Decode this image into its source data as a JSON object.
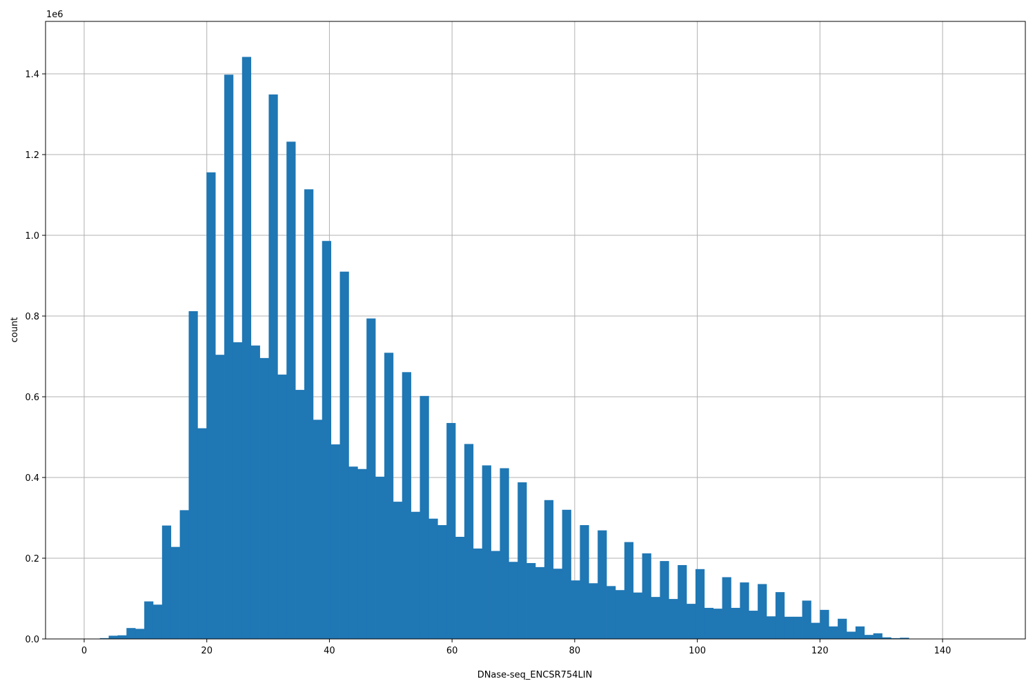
{
  "chart_data": {
    "type": "bar",
    "title": "",
    "xlabel": "DNase-seq_ENCSR754LIN",
    "ylabel": "count",
    "y_offset_label": "1e6",
    "bar_color": "#1f77b4",
    "grid": true,
    "xlim": [
      -6.3,
      153.5
    ],
    "ylim": [
      0,
      1.53
    ],
    "x_ticks": [
      0,
      20,
      40,
      60,
      80,
      100,
      120,
      140
    ],
    "x_tick_labels": [
      "0",
      "20",
      "40",
      "60",
      "80",
      "100",
      "120",
      "140"
    ],
    "y_ticks": [
      0.0,
      0.2,
      0.4,
      0.6,
      0.8,
      1.0,
      1.2,
      1.4
    ],
    "y_tick_labels": [
      "0.0",
      "0.2",
      "0.4",
      "0.6",
      "0.8",
      "1.0",
      "1.2",
      "1.4"
    ],
    "bin_width": 1.455,
    "bin_starts": [
      2.55,
      4.0,
      5.45,
      6.9,
      8.35,
      9.8,
      11.25,
      12.7,
      14.15,
      15.6,
      17.05,
      18.5,
      19.95,
      21.4,
      22.85,
      24.3,
      25.75,
      27.2,
      28.65,
      30.1,
      31.55,
      33.0,
      34.45,
      35.9,
      37.35,
      38.8,
      40.25,
      41.7,
      43.15,
      44.6,
      46.05,
      47.5,
      48.95,
      50.4,
      51.85,
      53.3,
      54.75,
      56.2,
      57.65,
      59.1,
      60.55,
      62.0,
      63.45,
      64.9,
      66.35,
      67.8,
      69.25,
      70.7,
      72.15,
      73.6,
      75.05,
      76.5,
      77.95,
      79.4,
      80.85,
      82.3,
      83.75,
      85.2,
      86.65,
      88.1,
      89.55,
      91.0,
      92.45,
      93.9,
      95.35,
      96.8,
      98.25,
      99.7,
      101.15,
      102.6,
      104.05,
      105.5,
      106.95,
      108.4,
      109.85,
      111.3,
      112.75,
      114.2,
      115.65,
      117.1,
      118.55,
      120.0,
      121.45,
      122.9,
      124.35,
      125.8,
      127.25,
      128.7,
      130.15,
      131.6,
      133.05
    ],
    "values": [
      0.002,
      0.008,
      0.009,
      0.027,
      0.025,
      0.093,
      0.085,
      0.281,
      0.228,
      0.319,
      0.812,
      0.522,
      1.156,
      0.704,
      1.398,
      0.735,
      1.442,
      0.727,
      0.696,
      1.349,
      0.655,
      1.232,
      0.617,
      1.114,
      0.543,
      0.986,
      0.482,
      0.91,
      0.427,
      0.421,
      0.794,
      0.402,
      0.709,
      0.34,
      0.661,
      0.315,
      0.602,
      0.298,
      0.282,
      0.535,
      0.253,
      0.483,
      0.224,
      0.43,
      0.218,
      0.423,
      0.191,
      0.388,
      0.188,
      0.178,
      0.344,
      0.174,
      0.32,
      0.145,
      0.282,
      0.138,
      0.269,
      0.131,
      0.121,
      0.24,
      0.115,
      0.212,
      0.104,
      0.193,
      0.099,
      0.183,
      0.087,
      0.173,
      0.077,
      0.075,
      0.153,
      0.077,
      0.14,
      0.07,
      0.136,
      0.056,
      0.116,
      0.055,
      0.055,
      0.095,
      0.04,
      0.072,
      0.031,
      0.05,
      0.018,
      0.031,
      0.01,
      0.014,
      0.004,
      0.002,
      0.003
    ]
  }
}
